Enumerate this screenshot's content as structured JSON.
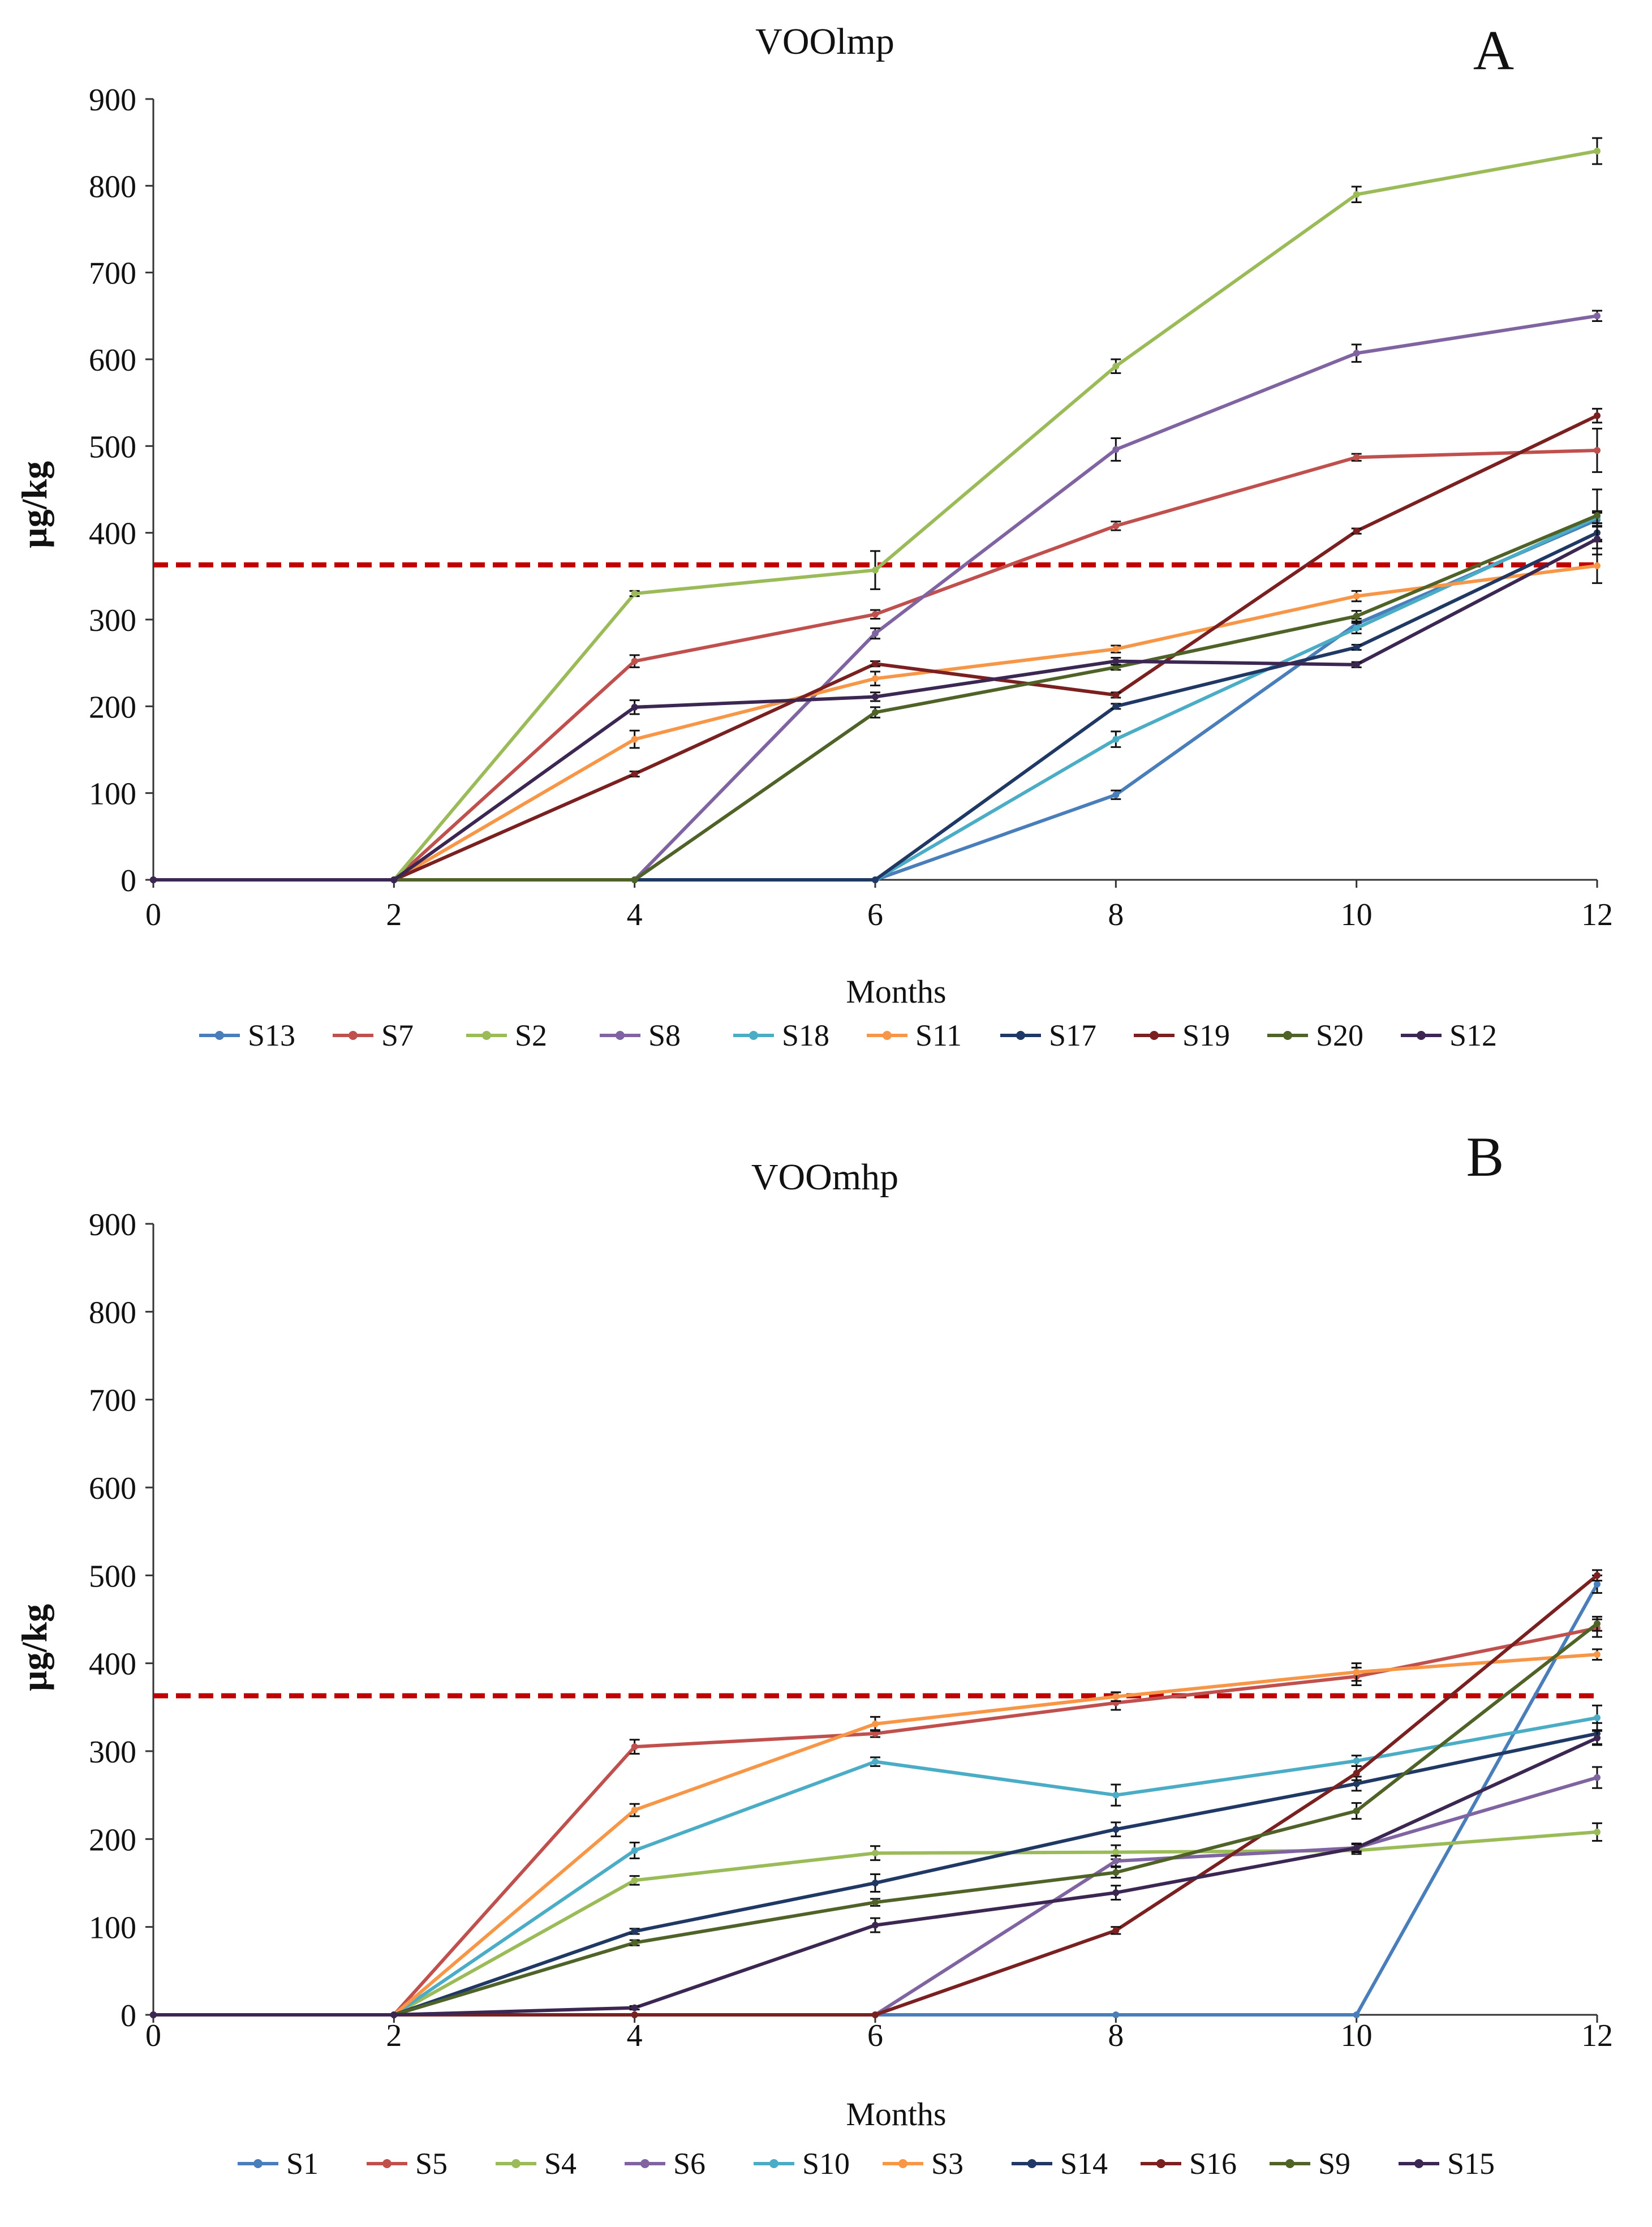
{
  "chart_data": [
    {
      "panel_id": "A",
      "type": "line",
      "title": "VOOlmp",
      "panel_label": "A",
      "xlabel": "Months",
      "ylabel": "µg/kg",
      "xlim": [
        0,
        12
      ],
      "ylim": [
        0,
        900
      ],
      "x_ticks": [
        0,
        2,
        4,
        6,
        8,
        10,
        12
      ],
      "y_ticks": [
        0,
        100,
        200,
        300,
        400,
        500,
        600,
        700,
        800,
        900
      ],
      "x": [
        0,
        2,
        4,
        6,
        8,
        10,
        12
      ],
      "reference_line": {
        "value": 363,
        "color": "#c00000",
        "style": "dashed"
      },
      "legend_position": "bottom",
      "series": [
        {
          "name": "S13",
          "color": "#4a7ebb",
          "values": [
            0,
            0,
            0,
            0,
            98,
            295,
            415
          ],
          "errors": [
            0,
            0,
            0,
            0,
            5,
            6,
            8
          ]
        },
        {
          "name": "S7",
          "color": "#c0504d",
          "values": [
            0,
            0,
            252,
            306,
            408,
            487,
            495
          ],
          "errors": [
            0,
            0,
            7,
            5,
            5,
            4,
            25
          ]
        },
        {
          "name": "S2",
          "color": "#9bbb59",
          "values": [
            0,
            0,
            330,
            357,
            592,
            790,
            840
          ],
          "errors": [
            0,
            0,
            3,
            22,
            8,
            9,
            15
          ]
        },
        {
          "name": "S8",
          "color": "#8064a2",
          "values": [
            0,
            0,
            0,
            284,
            496,
            607,
            650
          ],
          "errors": [
            0,
            0,
            0,
            6,
            13,
            10,
            6
          ]
        },
        {
          "name": "S18",
          "color": "#4bacc6",
          "values": [
            0,
            0,
            0,
            0,
            162,
            290,
            418
          ],
          "errors": [
            0,
            0,
            0,
            0,
            9,
            6,
            7
          ]
        },
        {
          "name": "S11",
          "color": "#f79646",
          "values": [
            0,
            0,
            162,
            232,
            266,
            327,
            362
          ],
          "errors": [
            0,
            0,
            10,
            8,
            4,
            6,
            20
          ]
        },
        {
          "name": "S17",
          "color": "#1f3864",
          "values": [
            0,
            0,
            0,
            0,
            200,
            268,
            400
          ],
          "errors": [
            0,
            0,
            0,
            0,
            3,
            3,
            8
          ]
        },
        {
          "name": "S19",
          "color": "#7b2020",
          "values": [
            0,
            0,
            122,
            249,
            213,
            402,
            535
          ],
          "errors": [
            0,
            0,
            3,
            3,
            3,
            3,
            8
          ]
        },
        {
          "name": "S20",
          "color": "#4f6228",
          "values": [
            0,
            0,
            0,
            193,
            245,
            304,
            420
          ],
          "errors": [
            0,
            0,
            0,
            6,
            3,
            6,
            30
          ]
        },
        {
          "name": "S12",
          "color": "#3b2752",
          "values": [
            0,
            0,
            199,
            211,
            252,
            248,
            393
          ],
          "errors": [
            0,
            0,
            8,
            5,
            4,
            3,
            18
          ]
        }
      ]
    },
    {
      "panel_id": "B",
      "type": "line",
      "title": "VOOmhp",
      "panel_label": "B",
      "xlabel": "Months",
      "ylabel": "µg/kg",
      "xlim": [
        0,
        12
      ],
      "ylim": [
        0,
        900
      ],
      "x_ticks": [
        0,
        2,
        4,
        6,
        8,
        10,
        12
      ],
      "y_ticks": [
        0,
        100,
        200,
        300,
        400,
        500,
        600,
        700,
        800,
        900
      ],
      "x": [
        0,
        2,
        4,
        6,
        8,
        10,
        12
      ],
      "reference_line": {
        "value": 363,
        "color": "#c00000",
        "style": "dashed"
      },
      "legend_position": "bottom",
      "series": [
        {
          "name": "S1",
          "color": "#4a7ebb",
          "values": [
            0,
            0,
            0,
            0,
            0,
            0,
            490
          ],
          "errors": [
            0,
            0,
            0,
            0,
            0,
            0,
            10
          ]
        },
        {
          "name": "S5",
          "color": "#c0504d",
          "values": [
            0,
            0,
            305,
            320,
            355,
            385,
            440
          ],
          "errors": [
            0,
            0,
            8,
            4,
            8,
            10,
            10
          ]
        },
        {
          "name": "S4",
          "color": "#9bbb59",
          "values": [
            0,
            0,
            153,
            184,
            185,
            187,
            208
          ],
          "errors": [
            0,
            0,
            5,
            8,
            8,
            4,
            10
          ]
        },
        {
          "name": "S6",
          "color": "#8064a2",
          "values": [
            0,
            0,
            0,
            0,
            175,
            190,
            270
          ],
          "errors": [
            0,
            0,
            0,
            0,
            6,
            5,
            12
          ]
        },
        {
          "name": "S10",
          "color": "#4bacc6",
          "values": [
            0,
            0,
            187,
            288,
            250,
            289,
            338
          ],
          "errors": [
            0,
            0,
            9,
            5,
            12,
            6,
            14
          ]
        },
        {
          "name": "S3",
          "color": "#f79646",
          "values": [
            0,
            0,
            233,
            331,
            362,
            390,
            410
          ],
          "errors": [
            0,
            0,
            7,
            8,
            5,
            10,
            6
          ]
        },
        {
          "name": "S14",
          "color": "#1f3864",
          "values": [
            0,
            0,
            95,
            150,
            211,
            263,
            320
          ],
          "errors": [
            0,
            0,
            3,
            10,
            8,
            8,
            12
          ]
        },
        {
          "name": "S16",
          "color": "#7b2020",
          "values": [
            0,
            0,
            0,
            0,
            96,
            275,
            500
          ],
          "errors": [
            0,
            0,
            0,
            0,
            4,
            8,
            6
          ]
        },
        {
          "name": "S9",
          "color": "#4f6228",
          "values": [
            0,
            0,
            82,
            128,
            162,
            232,
            445
          ],
          "errors": [
            0,
            0,
            3,
            4,
            6,
            9,
            8
          ]
        },
        {
          "name": "S15",
          "color": "#3b2752",
          "values": [
            0,
            0,
            8,
            102,
            139,
            190,
            315
          ],
          "errors": [
            0,
            0,
            2,
            8,
            8,
            4,
            8
          ]
        }
      ]
    }
  ]
}
